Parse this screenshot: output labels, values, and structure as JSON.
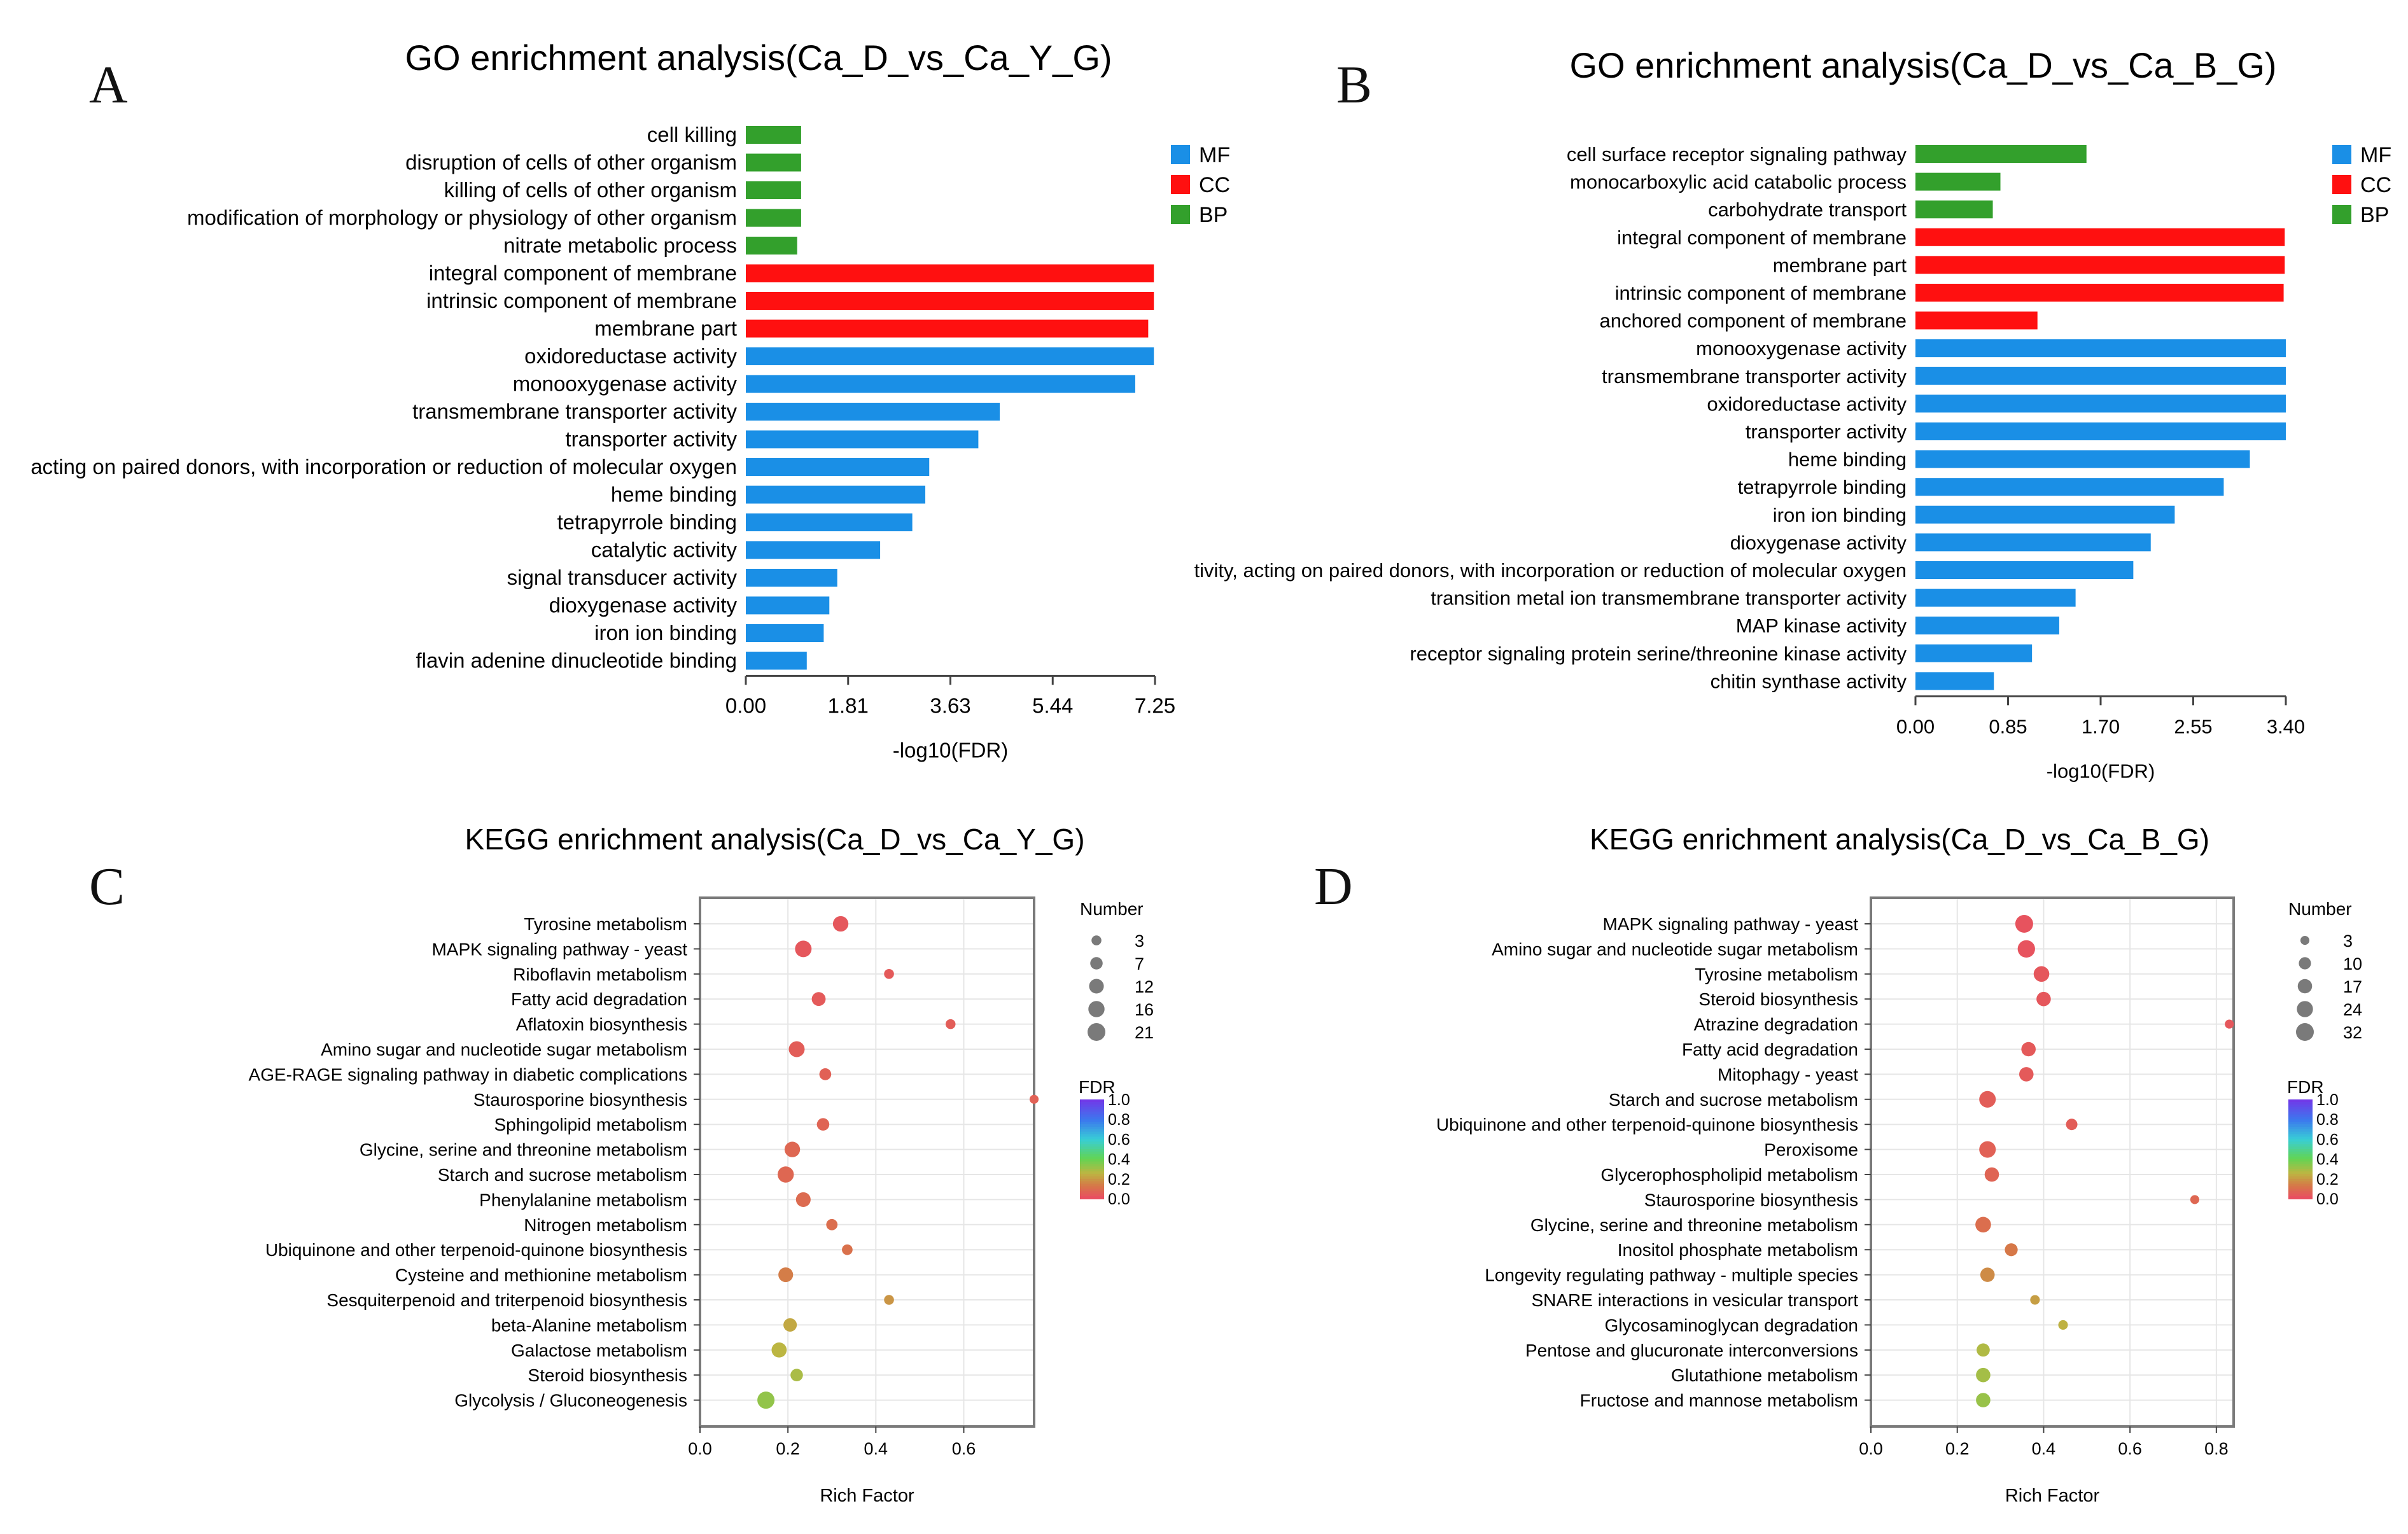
{
  "colors": {
    "MF": "#1a8fe6",
    "CC": "#ff1010",
    "BP": "#33a02c",
    "axis": "#444444",
    "frame": "#7a7a7a",
    "grid": "#e6e6e6"
  },
  "panel_letters": [
    "A",
    "B",
    "C",
    "D"
  ],
  "chart_data": [
    {
      "id": "A",
      "type": "bar",
      "orientation": "horizontal",
      "title": "GO enrichment analysis(Ca_D_vs_Ca_Y_G)",
      "xlabel": "-log10(FDR)",
      "xlim": [
        0,
        7.25
      ],
      "xticks": [
        "0.00",
        "1.81",
        "3.63",
        "5.44",
        "7.25"
      ],
      "legend": [
        "MF",
        "CC",
        "BP"
      ],
      "bars": [
        {
          "label": "cell killing",
          "value": 0.98,
          "category": "BP"
        },
        {
          "label": "disruption of cells of other organism",
          "value": 0.98,
          "category": "BP"
        },
        {
          "label": "killing of cells of other organism",
          "value": 0.98,
          "category": "BP"
        },
        {
          "label": "modification of morphology or physiology of other organism",
          "value": 0.98,
          "category": "BP"
        },
        {
          "label": "nitrate metabolic process",
          "value": 0.91,
          "category": "BP"
        },
        {
          "label": "integral component of membrane",
          "value": 7.23,
          "category": "CC"
        },
        {
          "label": "intrinsic component of membrane",
          "value": 7.23,
          "category": "CC"
        },
        {
          "label": "membrane part",
          "value": 7.13,
          "category": "CC"
        },
        {
          "label": "oxidoreductase activity",
          "value": 7.23,
          "category": "MF"
        },
        {
          "label": "monooxygenase activity",
          "value": 6.9,
          "category": "MF"
        },
        {
          "label": "transmembrane transporter activity",
          "value": 4.5,
          "category": "MF"
        },
        {
          "label": "transporter activity",
          "value": 4.12,
          "category": "MF"
        },
        {
          "label": "acting on paired donors, with incorporation or reduction of molecular oxygen",
          "value": 3.25,
          "category": "MF"
        },
        {
          "label": "heme binding",
          "value": 3.18,
          "category": "MF"
        },
        {
          "label": "tetrapyrrole binding",
          "value": 2.95,
          "category": "MF"
        },
        {
          "label": "catalytic activity",
          "value": 2.38,
          "category": "MF"
        },
        {
          "label": "signal transducer activity",
          "value": 1.62,
          "category": "MF"
        },
        {
          "label": "dioxygenase activity",
          "value": 1.48,
          "category": "MF"
        },
        {
          "label": "iron ion binding",
          "value": 1.38,
          "category": "MF"
        },
        {
          "label": "flavin adenine dinucleotide binding",
          "value": 1.08,
          "category": "MF"
        }
      ]
    },
    {
      "id": "B",
      "type": "bar",
      "orientation": "horizontal",
      "title": "GO enrichment analysis(Ca_D_vs_Ca_B_G)",
      "xlabel": "-log10(FDR)",
      "xlim": [
        0,
        3.4
      ],
      "xticks": [
        "0.00",
        "0.85",
        "1.70",
        "2.55",
        "3.40"
      ],
      "legend": [
        "MF",
        "CC",
        "BP"
      ],
      "bars": [
        {
          "label": "cell surface receptor signaling pathway",
          "value": 1.57,
          "category": "BP"
        },
        {
          "label": "monocarboxylic acid catabolic process",
          "value": 0.78,
          "category": "BP"
        },
        {
          "label": "carbohydrate transport",
          "value": 0.71,
          "category": "BP"
        },
        {
          "label": "integral component of membrane",
          "value": 3.39,
          "category": "CC"
        },
        {
          "label": "membrane part",
          "value": 3.39,
          "category": "CC"
        },
        {
          "label": "intrinsic component of membrane",
          "value": 3.38,
          "category": "CC"
        },
        {
          "label": "anchored component of membrane",
          "value": 1.12,
          "category": "CC"
        },
        {
          "label": "monooxygenase activity",
          "value": 3.4,
          "category": "MF"
        },
        {
          "label": "transmembrane transporter activity",
          "value": 3.4,
          "category": "MF"
        },
        {
          "label": "oxidoreductase activity",
          "value": 3.4,
          "category": "MF"
        },
        {
          "label": "transporter activity",
          "value": 3.4,
          "category": "MF"
        },
        {
          "label": "heme binding",
          "value": 3.07,
          "category": "MF"
        },
        {
          "label": "tetrapyrrole binding",
          "value": 2.83,
          "category": "MF"
        },
        {
          "label": "iron ion binding",
          "value": 2.38,
          "category": "MF"
        },
        {
          "label": "dioxygenase activity",
          "value": 2.16,
          "category": "MF"
        },
        {
          "label": "tivity, acting on paired donors, with incorporation or reduction of molecular oxygen",
          "value": 2.0,
          "category": "MF"
        },
        {
          "label": "transition metal ion transmembrane transporter activity",
          "value": 1.47,
          "category": "MF"
        },
        {
          "label": "MAP kinase activity",
          "value": 1.32,
          "category": "MF"
        },
        {
          "label": "receptor signaling protein serine/threonine kinase activity",
          "value": 1.07,
          "category": "MF"
        },
        {
          "label": "chitin synthase activity",
          "value": 0.72,
          "category": "MF"
        }
      ]
    },
    {
      "id": "C",
      "type": "scatter",
      "title": "KEGG enrichment analysis(Ca_D_vs_Ca_Y_G)",
      "xlabel": "Rich Factor",
      "xlim": [
        0,
        0.76
      ],
      "xticks": [
        0.0,
        0.2,
        0.4,
        0.6
      ],
      "size_legend": {
        "title": "Number",
        "values": [
          3,
          7,
          12,
          16,
          21
        ]
      },
      "color_legend": {
        "title": "FDR",
        "ticks": [
          "1.0",
          "0.8",
          "0.6",
          "0.4",
          "0.2",
          "0.0"
        ]
      },
      "points": [
        {
          "label": "Tyrosine metabolism",
          "x": 0.32,
          "number": 14,
          "fdr": 0.02
        },
        {
          "label": "MAPK signaling pathway - yeast",
          "x": 0.235,
          "number": 17,
          "fdr": 0.02
        },
        {
          "label": "Riboflavin metabolism",
          "x": 0.43,
          "number": 3,
          "fdr": 0.03
        },
        {
          "label": "Fatty acid degradation",
          "x": 0.27,
          "number": 10,
          "fdr": 0.03
        },
        {
          "label": "Aflatoxin biosynthesis",
          "x": 0.57,
          "number": 3,
          "fdr": 0.04
        },
        {
          "label": "Amino sugar and nucleotide sugar metabolism",
          "x": 0.22,
          "number": 15,
          "fdr": 0.04
        },
        {
          "label": "AGE-RAGE signaling pathway in diabetic complications",
          "x": 0.285,
          "number": 6,
          "fdr": 0.05
        },
        {
          "label": "Staurosporine biosynthesis",
          "x": 0.76,
          "number": 2,
          "fdr": 0.05
        },
        {
          "label": "Sphingolipid metabolism",
          "x": 0.28,
          "number": 7,
          "fdr": 0.06
        },
        {
          "label": "Glycine, serine and threonine metabolism",
          "x": 0.21,
          "number": 14,
          "fdr": 0.07
        },
        {
          "label": "Starch and sucrose metabolism",
          "x": 0.195,
          "number": 16,
          "fdr": 0.07
        },
        {
          "label": "Phenylalanine metabolism",
          "x": 0.235,
          "number": 12,
          "fdr": 0.08
        },
        {
          "label": "Nitrogen metabolism",
          "x": 0.3,
          "number": 5,
          "fdr": 0.09
        },
        {
          "label": "Ubiquinone and other terpenoid-quinone biosynthesis",
          "x": 0.335,
          "number": 4,
          "fdr": 0.1
        },
        {
          "label": "Cysteine and methionine metabolism",
          "x": 0.195,
          "number": 12,
          "fdr": 0.13
        },
        {
          "label": "Sesquiterpenoid and triterpenoid biosynthesis",
          "x": 0.43,
          "number": 3,
          "fdr": 0.18
        },
        {
          "label": "beta-Alanine metabolism",
          "x": 0.205,
          "number": 9,
          "fdr": 0.22
        },
        {
          "label": "Galactose metabolism",
          "x": 0.18,
          "number": 13,
          "fdr": 0.25
        },
        {
          "label": "Steroid biosynthesis",
          "x": 0.22,
          "number": 7,
          "fdr": 0.28
        },
        {
          "label": "Glycolysis / Gluconeogenesis",
          "x": 0.15,
          "number": 19,
          "fdr": 0.32
        }
      ]
    },
    {
      "id": "D",
      "type": "scatter",
      "title": "KEGG enrichment analysis(Ca_D_vs_Ca_B_G)",
      "xlabel": "Rich Factor",
      "xlim": [
        0,
        0.84
      ],
      "xticks": [
        0.0,
        0.2,
        0.4,
        0.6,
        0.8
      ],
      "size_legend": {
        "title": "Number",
        "values": [
          3,
          10,
          17,
          24,
          32
        ]
      },
      "color_legend": {
        "title": "FDR",
        "ticks": [
          "1.0",
          "0.8",
          "0.6",
          "0.4",
          "0.2",
          "0.0"
        ]
      },
      "points": [
        {
          "label": "MAPK signaling pathway - yeast",
          "x": 0.355,
          "number": 32,
          "fdr": 0.01
        },
        {
          "label": "Amino sugar and nucleotide sugar metabolism",
          "x": 0.36,
          "number": 30,
          "fdr": 0.01
        },
        {
          "label": "Tyrosine metabolism",
          "x": 0.395,
          "number": 22,
          "fdr": 0.02
        },
        {
          "label": "Steroid biosynthesis",
          "x": 0.4,
          "number": 17,
          "fdr": 0.02
        },
        {
          "label": "Atrazine degradation",
          "x": 0.83,
          "number": 3,
          "fdr": 0.02
        },
        {
          "label": "Fatty acid degradation",
          "x": 0.365,
          "number": 17,
          "fdr": 0.03
        },
        {
          "label": "Mitophagy - yeast",
          "x": 0.36,
          "number": 17,
          "fdr": 0.03
        },
        {
          "label": "Starch and sucrose metabolism",
          "x": 0.27,
          "number": 26,
          "fdr": 0.04
        },
        {
          "label": "Ubiquinone and other terpenoid-quinone biosynthesis",
          "x": 0.465,
          "number": 8,
          "fdr": 0.04
        },
        {
          "label": "Peroxisome",
          "x": 0.27,
          "number": 26,
          "fdr": 0.05
        },
        {
          "label": "Glycerophospholipid metabolism",
          "x": 0.28,
          "number": 17,
          "fdr": 0.06
        },
        {
          "label": "Staurosporine biosynthesis",
          "x": 0.75,
          "number": 3,
          "fdr": 0.07
        },
        {
          "label": "Glycine, serine and threonine metabolism",
          "x": 0.26,
          "number": 22,
          "fdr": 0.09
        },
        {
          "label": "Inositol phosphate metabolism",
          "x": 0.325,
          "number": 12,
          "fdr": 0.12
        },
        {
          "label": "Longevity regulating pathway - multiple species",
          "x": 0.27,
          "number": 17,
          "fdr": 0.16
        },
        {
          "label": "SNARE interactions in vesicular transport",
          "x": 0.38,
          "number": 4,
          "fdr": 0.2
        },
        {
          "label": "Glycosaminoglycan degradation",
          "x": 0.445,
          "number": 4,
          "fdr": 0.24
        },
        {
          "label": "Pentose and glucuronate interconversions",
          "x": 0.26,
          "number": 13,
          "fdr": 0.27
        },
        {
          "label": "Glutathione metabolism",
          "x": 0.26,
          "number": 17,
          "fdr": 0.29
        },
        {
          "label": "Fructose and mannose metabolism",
          "x": 0.26,
          "number": 17,
          "fdr": 0.31
        }
      ]
    }
  ]
}
